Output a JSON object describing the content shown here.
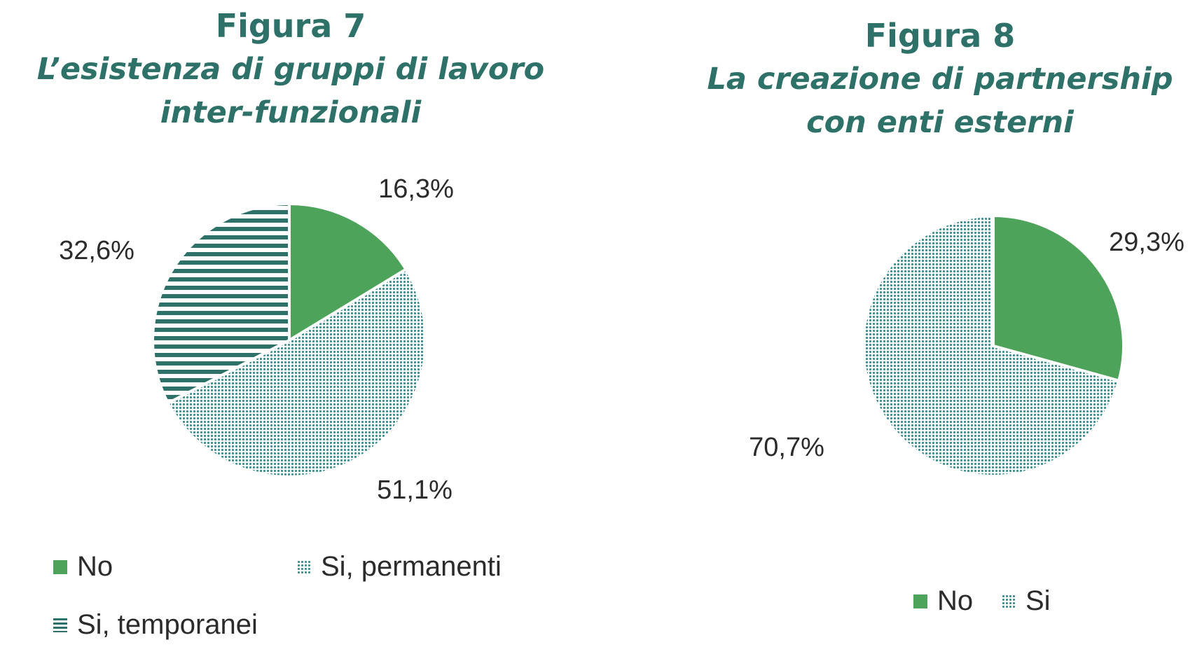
{
  "colors": {
    "title": "#2e7168",
    "green": "#4ea35a",
    "dots": "#3f8f8f",
    "lines": "#2e7168",
    "text": "#2b2b2b"
  },
  "chart_data": [
    {
      "type": "pie",
      "title": "Figura 7",
      "subtitle_line1": "L’esistenza di gruppi di lavoro",
      "subtitle_line2": "inter-funzionali",
      "categories": [
        "No",
        "Si, permanenti",
        "Si, temporanei"
      ],
      "values": [
        16.3,
        51.1,
        32.6
      ],
      "data_labels": [
        "16,3%",
        "51,1%",
        "32,6%"
      ],
      "fills": [
        "solid-green",
        "dotted-teal",
        "horizontal-lines"
      ],
      "legend": [
        {
          "label": "No",
          "swatch": "solid-green"
        },
        {
          "label": "Si, permanenti",
          "swatch": "dotted-teal"
        },
        {
          "label": "Si, temporanei",
          "swatch": "horizontal-lines"
        }
      ],
      "legend_position": "bottom"
    },
    {
      "type": "pie",
      "title": "Figura 8",
      "subtitle_line1": "La creazione di partnership",
      "subtitle_line2": "con enti esterni",
      "categories": [
        "No",
        "Si"
      ],
      "values": [
        29.3,
        70.7
      ],
      "data_labels": [
        "29,3%",
        "70,7%"
      ],
      "fills": [
        "solid-green",
        "dotted-teal"
      ],
      "legend": [
        {
          "label": "No",
          "swatch": "solid-green"
        },
        {
          "label": "Si",
          "swatch": "dotted-teal"
        }
      ],
      "legend_position": "bottom"
    }
  ]
}
